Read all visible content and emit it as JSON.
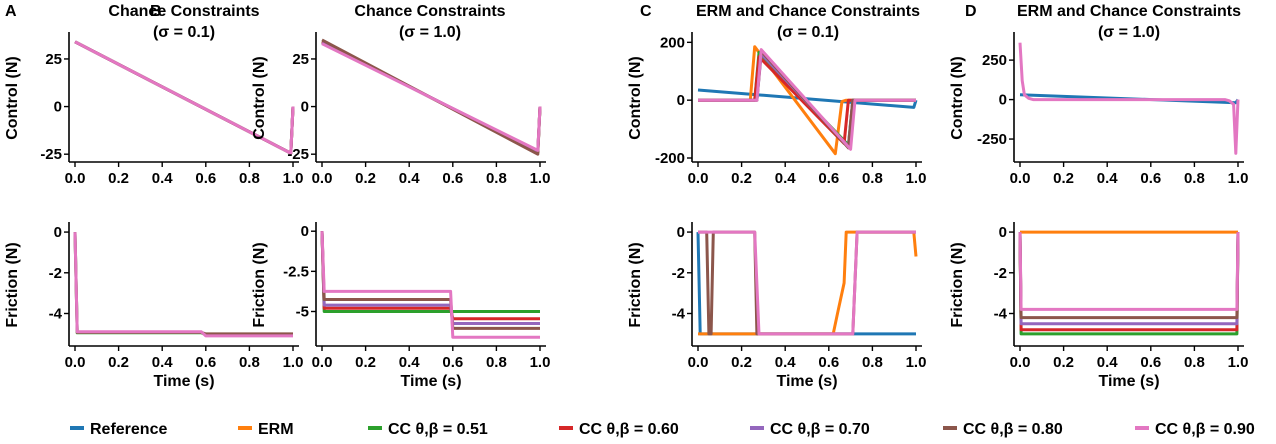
{
  "legend": [
    {
      "label": "Reference",
      "color": "#1f77b4"
    },
    {
      "label": "ERM",
      "color": "#ff7f0e"
    },
    {
      "label": "CC θ,β = 0.51",
      "color": "#2ca02c"
    },
    {
      "label": "CC θ,β = 0.60",
      "color": "#d62728"
    },
    {
      "label": "CC θ,β = 0.70",
      "color": "#9467bd"
    },
    {
      "label": "CC θ,β = 0.80",
      "color": "#8c564b"
    },
    {
      "label": "CC θ,β = 0.90",
      "color": "#e377c2"
    }
  ],
  "chart_data": [
    {
      "panel": "A",
      "type": "line",
      "title": [
        "Chance Constraints",
        "(σ = 0.1)"
      ],
      "ylabel": "Control (N)",
      "xlabel": "",
      "xlim": [
        0,
        1
      ],
      "ylim": [
        -27,
        36
      ],
      "xticks": [
        "0.0",
        "0.2",
        "0.4",
        "0.6",
        "0.8",
        "1.0"
      ],
      "yticks": [
        25,
        0,
        -25
      ],
      "series": [
        {
          "name": "CC θ,β = 0.51",
          "x": [
            0,
            0.99,
            1.0
          ],
          "y": [
            34,
            -24.5,
            0
          ]
        },
        {
          "name": "CC θ,β = 0.60",
          "x": [
            0,
            0.99,
            1.0
          ],
          "y": [
            34,
            -24.5,
            0
          ]
        },
        {
          "name": "CC θ,β = 0.70",
          "x": [
            0,
            0.99,
            1.0
          ],
          "y": [
            34,
            -24.5,
            0
          ]
        },
        {
          "name": "CC θ,β = 0.80",
          "x": [
            0,
            0.99,
            1.0
          ],
          "y": [
            34,
            -24.5,
            0
          ]
        },
        {
          "name": "CC θ,β = 0.90",
          "x": [
            0,
            0.99,
            1.0
          ],
          "y": [
            34,
            -24.5,
            0
          ]
        }
      ]
    },
    {
      "panel": "B",
      "type": "line",
      "title": [
        "Chance Constraints",
        "(σ = 1.0)"
      ],
      "ylabel": "Control (N)",
      "xlabel": "",
      "xlim": [
        0,
        1
      ],
      "ylim": [
        -27,
        36
      ],
      "xticks": [
        "0.0",
        "0.2",
        "0.4",
        "0.6",
        "0.8",
        "1.0"
      ],
      "yticks": [
        25,
        0,
        -25
      ],
      "series": [
        {
          "name": "CC θ,β = 0.51",
          "x": [
            0,
            0.99,
            1.0
          ],
          "y": [
            34,
            -24,
            0
          ]
        },
        {
          "name": "CC θ,β = 0.60",
          "x": [
            0,
            0.99,
            1.0
          ],
          "y": [
            34,
            -24,
            0
          ]
        },
        {
          "name": "CC θ,β = 0.70",
          "x": [
            0,
            0.99,
            1.0
          ],
          "y": [
            33.5,
            -23.5,
            0
          ]
        },
        {
          "name": "CC θ,β = 0.80",
          "x": [
            0,
            0.99,
            1.0
          ],
          "y": [
            35,
            -25,
            0
          ]
        },
        {
          "name": "CC θ,β = 0.90",
          "x": [
            0,
            0.99,
            1.0
          ],
          "y": [
            33,
            -23,
            0
          ]
        }
      ]
    },
    {
      "panel": "C",
      "type": "line",
      "title": [
        "ERM and Chance Constraints",
        "(σ = 0.1)"
      ],
      "ylabel": "Control (N)",
      "xlabel": "",
      "xlim": [
        0,
        1
      ],
      "ylim": [
        -200,
        215
      ],
      "xticks": [
        "0.0",
        "0.2",
        "0.4",
        "0.6",
        "0.8",
        "1.0"
      ],
      "yticks": [
        200,
        0,
        -200
      ],
      "series": [
        {
          "name": "Reference",
          "x": [
            0,
            0.99,
            1.0
          ],
          "y": [
            35,
            -25,
            0
          ]
        },
        {
          "name": "ERM",
          "x": [
            0,
            0.24,
            0.26,
            0.63,
            0.66,
            0.68,
            1.0
          ],
          "y": [
            0,
            0,
            185,
            -185,
            -5,
            0,
            0
          ]
        },
        {
          "name": "CC θ,β = 0.51",
          "x": [
            0,
            0.26,
            0.28,
            0.69,
            0.71,
            1.0
          ],
          "y": [
            0,
            0,
            165,
            -155,
            0,
            0
          ]
        },
        {
          "name": "CC θ,β = 0.60",
          "x": [
            0,
            0.26,
            0.28,
            0.67,
            0.69,
            1.0
          ],
          "y": [
            0,
            0,
            150,
            -150,
            0,
            0
          ]
        },
        {
          "name": "CC θ,β = 0.70",
          "x": [
            0,
            0.27,
            0.29,
            0.69,
            0.71,
            1.0
          ],
          "y": [
            0,
            0,
            160,
            -160,
            0,
            0
          ]
        },
        {
          "name": "CC θ,β = 0.80",
          "x": [
            0,
            0.27,
            0.29,
            0.69,
            0.71,
            1.0
          ],
          "y": [
            0,
            0,
            170,
            -165,
            0,
            0
          ]
        },
        {
          "name": "CC θ,β = 0.90",
          "x": [
            0,
            0.27,
            0.29,
            0.7,
            0.72,
            1.0
          ],
          "y": [
            0,
            0,
            175,
            -170,
            0,
            0
          ]
        }
      ]
    },
    {
      "panel": "D",
      "type": "line",
      "title": [
        "ERM and Chance Constraints",
        "(σ = 1.0)"
      ],
      "ylabel": "Control (N)",
      "xlabel": "",
      "xlim": [
        0,
        1
      ],
      "ylim": [
        -370,
        390
      ],
      "xticks": [
        "0.0",
        "0.2",
        "0.4",
        "0.6",
        "0.8",
        "1.0"
      ],
      "yticks": [
        250,
        0,
        -250
      ],
      "series": [
        {
          "name": "Reference",
          "x": [
            0,
            0.99,
            1.0
          ],
          "y": [
            30,
            -20,
            0
          ]
        },
        {
          "name": "CC θ,β = 0.90",
          "x": [
            0,
            0.01,
            0.02,
            0.04,
            0.06,
            0.94,
            0.96,
            0.98,
            0.99,
            1.0
          ],
          "y": [
            360,
            120,
            30,
            8,
            0,
            0,
            -8,
            -30,
            -340,
            0
          ]
        }
      ]
    },
    {
      "panel": "A",
      "type": "line",
      "title": [],
      "ylabel": "Friction (N)",
      "xlabel": "Time (s)",
      "xlim": [
        0,
        1
      ],
      "ylim": [
        -5.4,
        0.2
      ],
      "xticks": [
        "0.0",
        "0.2",
        "0.4",
        "0.6",
        "0.8",
        "1.0"
      ],
      "yticks": [
        0,
        -2,
        -4
      ],
      "series": [
        {
          "name": "CC θ,β = 0.51",
          "x": [
            0,
            0.01,
            0.58,
            0.6,
            1.0
          ],
          "y": [
            0,
            -4.95,
            -4.95,
            -5.05,
            -5.05
          ]
        },
        {
          "name": "CC θ,β = 0.80",
          "x": [
            0,
            0.01,
            0.58,
            0.6,
            1.0
          ],
          "y": [
            0,
            -4.93,
            -4.93,
            -5.0,
            -5.0
          ]
        },
        {
          "name": "CC θ,β = 0.90",
          "x": [
            0,
            0.01,
            0.58,
            0.6,
            1.0
          ],
          "y": [
            0,
            -4.9,
            -4.9,
            -5.1,
            -5.1
          ]
        }
      ]
    },
    {
      "panel": "B",
      "type": "line",
      "title": [],
      "ylabel": "Friction (N)",
      "xlabel": "Time (s)",
      "xlim": [
        0,
        1
      ],
      "ylim": [
        -6.9,
        0.2
      ],
      "xticks": [
        "0.0",
        "0.2",
        "0.4",
        "0.6",
        "0.8",
        "1.0"
      ],
      "yticks": [
        "0",
        "-2.5",
        "-5"
      ],
      "ytick_values": [
        0,
        -2.5,
        -5
      ],
      "series": [
        {
          "name": "CC θ,β = 0.51",
          "x": [
            0,
            0.01,
            0.59,
            0.6,
            1.0
          ],
          "y": [
            0,
            -5.0,
            -5.0,
            -5.0,
            -5.0
          ]
        },
        {
          "name": "CC θ,β = 0.60",
          "x": [
            0,
            0.01,
            0.59,
            0.6,
            1.0
          ],
          "y": [
            0,
            -4.8,
            -4.8,
            -5.45,
            -5.45
          ]
        },
        {
          "name": "CC θ,β = 0.70",
          "x": [
            0,
            0.01,
            0.59,
            0.6,
            1.0
          ],
          "y": [
            0,
            -4.6,
            -4.6,
            -5.75,
            -5.75
          ]
        },
        {
          "name": "CC θ,β = 0.80",
          "x": [
            0,
            0.01,
            0.59,
            0.6,
            1.0
          ],
          "y": [
            0,
            -4.25,
            -4.25,
            -6.05,
            -6.05
          ]
        },
        {
          "name": "CC θ,β = 0.90",
          "x": [
            0,
            0.01,
            0.59,
            0.6,
            1.0
          ],
          "y": [
            0,
            -3.75,
            -3.75,
            -6.6,
            -6.6
          ]
        }
      ]
    },
    {
      "panel": "C",
      "type": "line",
      "title": [],
      "ylabel": "Friction (N)",
      "xlabel": "Time (s)",
      "xlim": [
        0,
        1
      ],
      "ylim": [
        -5.4,
        0.2
      ],
      "xticks": [
        "0.0",
        "0.2",
        "0.4",
        "0.6",
        "0.8",
        "1.0"
      ],
      "yticks": [
        0,
        -2,
        -4
      ],
      "series": [
        {
          "name": "Reference",
          "x": [
            0,
            0.01,
            1.0
          ],
          "y": [
            0,
            -5,
            -5
          ]
        },
        {
          "name": "ERM",
          "x": [
            0,
            0.62,
            0.64,
            0.67,
            0.68,
            0.98,
            0.99,
            1.0
          ],
          "y": [
            -5,
            -5,
            -4.0,
            -2.5,
            0,
            0,
            0,
            -1.2
          ]
        },
        {
          "name": "CC θ,β = 0.80",
          "x": [
            0,
            0.04,
            0.05,
            0.06,
            0.07,
            0.26,
            0.27,
            0.71,
            0.73,
            1.0
          ],
          "y": [
            0,
            0,
            -5,
            -5,
            0,
            0,
            -5,
            -5,
            0,
            0
          ]
        },
        {
          "name": "CC θ,β = 0.90",
          "x": [
            0,
            0.26,
            0.28,
            0.71,
            0.73,
            1.0
          ],
          "y": [
            0,
            0,
            -5,
            -5,
            0,
            0
          ]
        }
      ]
    },
    {
      "panel": "D",
      "type": "line",
      "title": [],
      "ylabel": "Friction (N)",
      "xlabel": "Time (s)",
      "xlim": [
        0,
        1
      ],
      "ylim": [
        -5.4,
        0.2
      ],
      "xticks": [
        "0.0",
        "0.2",
        "0.4",
        "0.6",
        "0.8",
        "1.0"
      ],
      "yticks": [
        0,
        -2,
        -4
      ],
      "series": [
        {
          "name": "ERM",
          "x": [
            0,
            1.0
          ],
          "y": [
            0,
            0
          ]
        },
        {
          "name": "CC θ,β = 0.51",
          "x": [
            0,
            0.005,
            0.995,
            1.0
          ],
          "y": [
            0,
            -5.0,
            -5.0,
            0
          ]
        },
        {
          "name": "CC θ,β = 0.60",
          "x": [
            0,
            0.005,
            0.995,
            1.0
          ],
          "y": [
            0,
            -4.8,
            -4.8,
            0
          ]
        },
        {
          "name": "CC θ,β = 0.70",
          "x": [
            0,
            0.005,
            0.995,
            1.0
          ],
          "y": [
            0,
            -4.5,
            -4.5,
            0
          ]
        },
        {
          "name": "CC θ,β = 0.80",
          "x": [
            0,
            0.005,
            0.995,
            1.0
          ],
          "y": [
            0,
            -4.2,
            -4.2,
            0
          ]
        },
        {
          "name": "CC θ,β = 0.90",
          "x": [
            0,
            0.005,
            0.995,
            1.0
          ],
          "y": [
            0,
            -3.8,
            -3.8,
            0
          ]
        }
      ]
    }
  ]
}
